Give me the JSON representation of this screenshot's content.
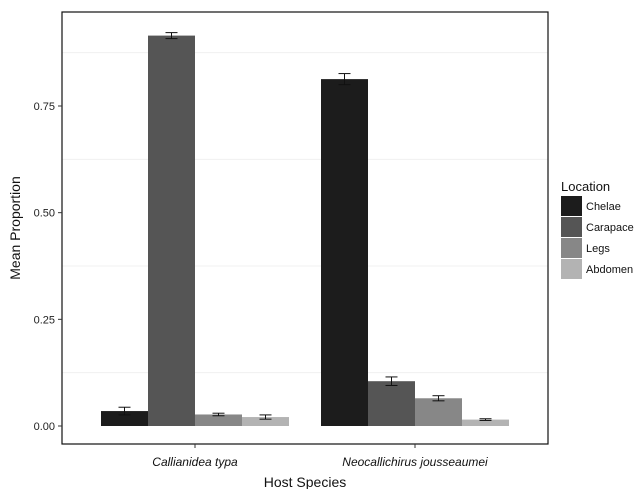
{
  "chart_data": {
    "type": "bar",
    "xlabel": "Host Species",
    "ylabel": "Mean Proportion",
    "ylim": [
      0,
      0.95
    ],
    "yticks": [
      0.0,
      0.25,
      0.5,
      0.75
    ],
    "ytick_labels": [
      "0.00",
      "0.25",
      "0.50",
      "0.75"
    ],
    "categories": [
      "Callianidea typa",
      "Neocallichirus jousseaumei"
    ],
    "legend_title": "Location",
    "legend_position": "right",
    "series": [
      {
        "name": "Chelae",
        "color": "#1c1c1c",
        "values": [
          0.035,
          0.813
        ],
        "errors": [
          0.009,
          0.013
        ]
      },
      {
        "name": "Carapace",
        "color": "#555555",
        "values": [
          0.915,
          0.105
        ],
        "errors": [
          0.007,
          0.01
        ]
      },
      {
        "name": "Legs",
        "color": "#878787",
        "values": [
          0.027,
          0.065
        ],
        "errors": [
          0.003,
          0.006
        ]
      },
      {
        "name": "Abdomen",
        "color": "#b3b3b3",
        "values": [
          0.021,
          0.015
        ],
        "errors": [
          0.005,
          0.002
        ]
      }
    ]
  }
}
